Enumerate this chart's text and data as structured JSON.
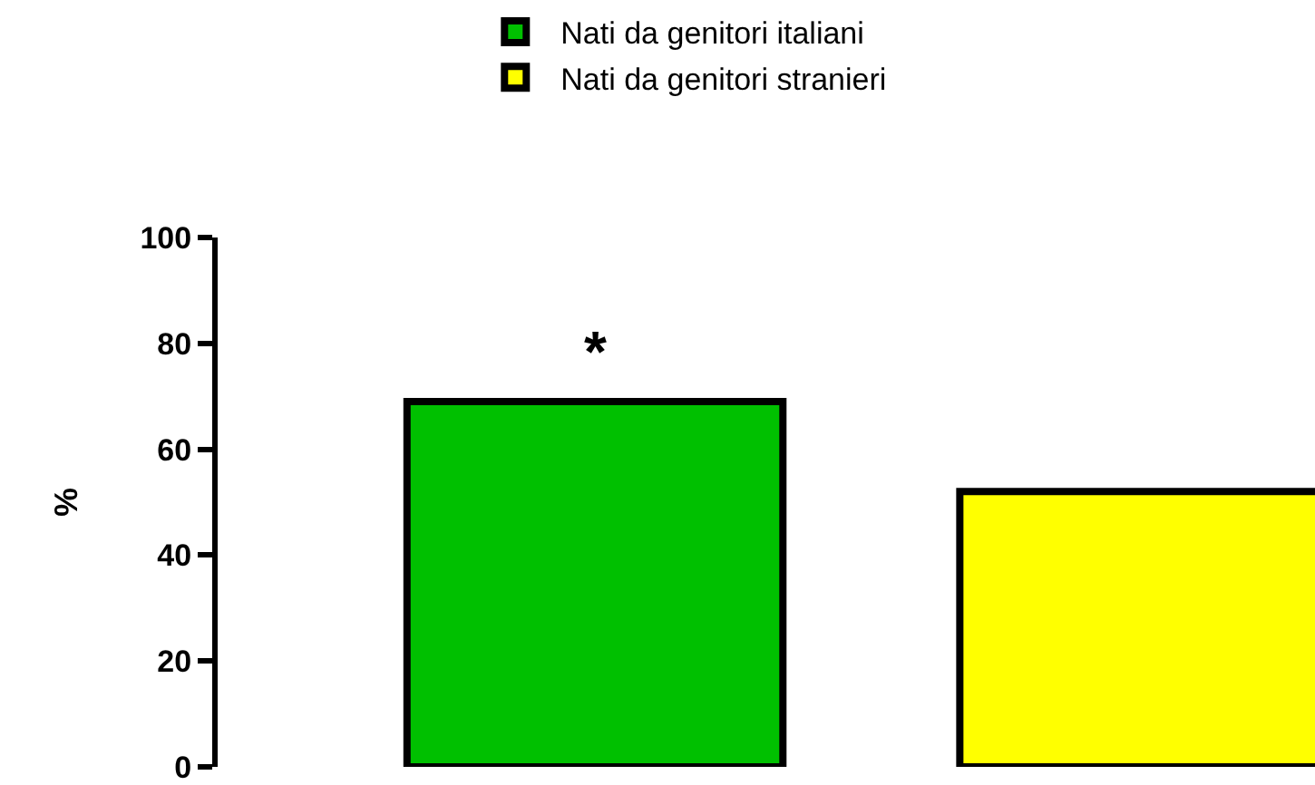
{
  "chart_data": {
    "type": "bar",
    "ylabel": "%",
    "categories": [
      null
    ],
    "series": [
      {
        "name": "Nati da genitori italiani",
        "color": "#00c000",
        "values": [
          69
        ]
      },
      {
        "name": "Nati da genitori stranieri",
        "color": "#ffff00",
        "values": [
          52
        ]
      }
    ],
    "ylim": [
      0,
      100
    ],
    "yticks": [
      0,
      20,
      40,
      60,
      80,
      100
    ],
    "grid": false,
    "legend": "top",
    "tick_labels": "y",
    "annotations": [
      "*"
    ]
  }
}
